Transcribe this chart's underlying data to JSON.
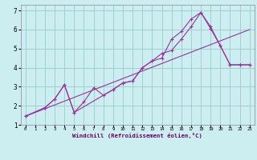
{
  "xlabel": "Windchill (Refroidissement éolien,°C)",
  "bg_color": "#cceef0",
  "grid_color": "#99cccc",
  "line_color": "#993399",
  "xlim": [
    -0.5,
    23.5
  ],
  "ylim": [
    1.0,
    7.3
  ],
  "yticks": [
    1,
    2,
    3,
    4,
    5,
    6,
    7
  ],
  "xticks": [
    0,
    1,
    2,
    3,
    4,
    5,
    6,
    7,
    8,
    9,
    10,
    11,
    12,
    13,
    14,
    15,
    16,
    17,
    18,
    19,
    20,
    21,
    22,
    23
  ],
  "line1_x": [
    0,
    23
  ],
  "line1_y": [
    1.45,
    6.0
  ],
  "line2_x": [
    0,
    2,
    3,
    4,
    5,
    6,
    7,
    8,
    9,
    10,
    11,
    12,
    13,
    14,
    15,
    16,
    17,
    18,
    19,
    20,
    21,
    22,
    23
  ],
  "line2_y": [
    1.45,
    1.9,
    2.35,
    3.1,
    1.65,
    2.2,
    2.95,
    2.55,
    2.85,
    3.2,
    3.3,
    4.0,
    4.35,
    4.5,
    5.5,
    5.9,
    6.55,
    6.9,
    6.15,
    5.15,
    4.15,
    4.15,
    4.15
  ],
  "line3_x": [
    0,
    2,
    3,
    4,
    5,
    9,
    10,
    11,
    12,
    13,
    14,
    15,
    16,
    17,
    18,
    19,
    20,
    21,
    22,
    23
  ],
  "line3_y": [
    1.45,
    1.9,
    2.35,
    3.1,
    1.65,
    2.85,
    3.2,
    3.3,
    4.0,
    4.35,
    4.75,
    4.9,
    5.5,
    6.15,
    6.9,
    6.05,
    5.15,
    4.15,
    4.15,
    4.15
  ]
}
